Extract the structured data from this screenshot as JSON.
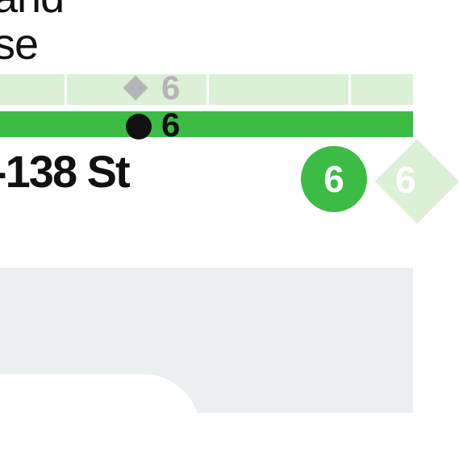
{
  "station": {
    "name_line1": "and",
    "name_line2": "se"
  },
  "tracks": {
    "express": {
      "route": "6",
      "symbol": "diamond-icon"
    },
    "local": {
      "route": "6",
      "symbol": "dot-icon"
    }
  },
  "stop": {
    "name": "-138 St"
  },
  "route_bullets": [
    {
      "route": "6",
      "shape": "circle",
      "color": "#3cbc45"
    },
    {
      "route": "6",
      "shape": "diamond",
      "color": "#dcefd7"
    }
  ],
  "colors": {
    "line_green": "#3cbc45",
    "line_green_light": "#dcefd7",
    "text": "#111111",
    "express_gray": "#b5b5b5",
    "panel_bg": "#eceff0"
  }
}
